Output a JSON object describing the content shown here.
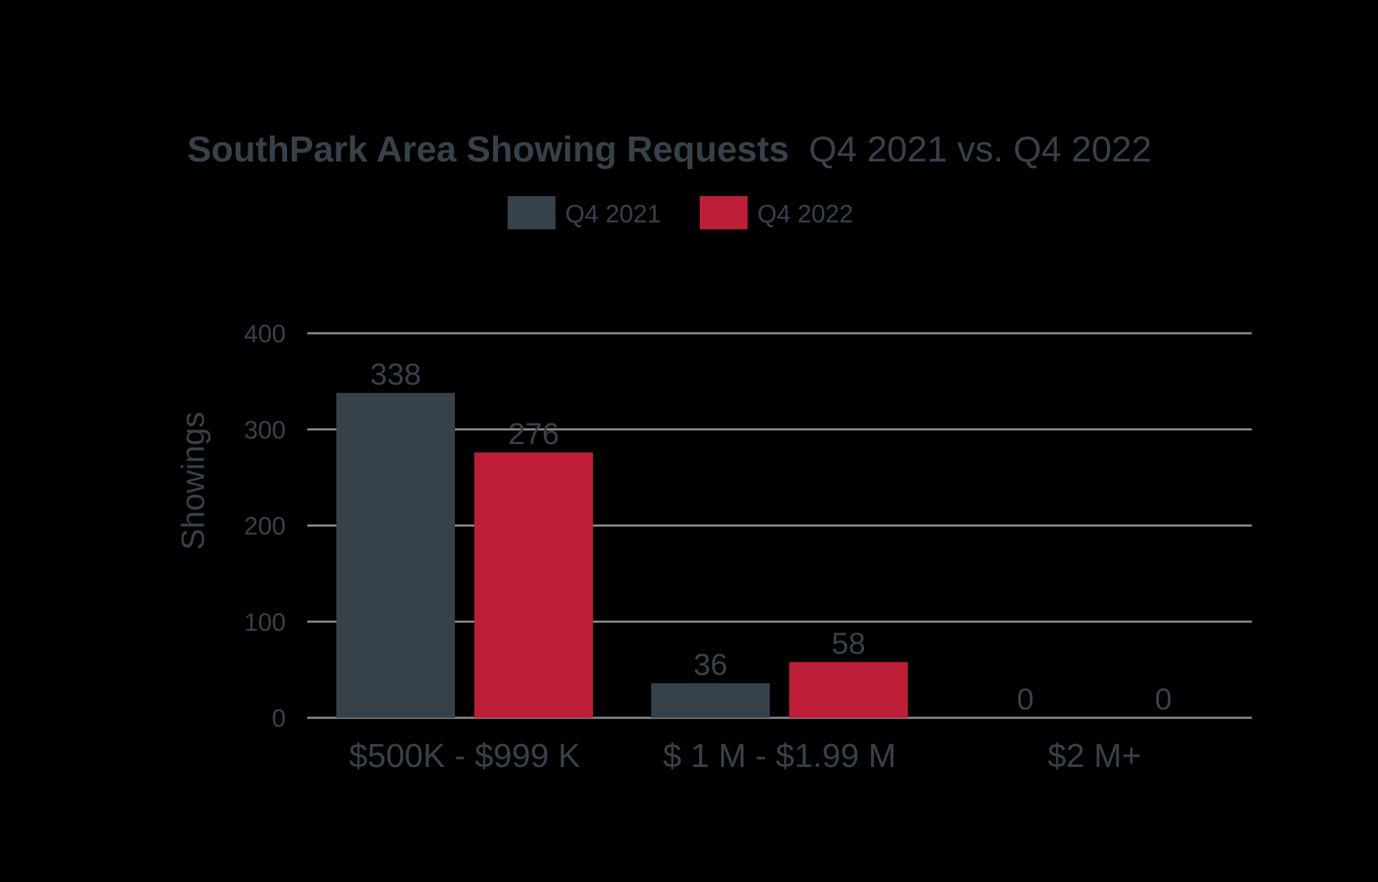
{
  "chart_data": {
    "type": "bar",
    "title_bold": "SouthPark Area Showing Requests",
    "title_rest": "Q4 2021 vs. Q4 2022",
    "xlabel": "",
    "ylabel": "Showings",
    "categories": [
      "$500K - $999 K",
      "$ 1 M - $1.99 M",
      "$2 M+"
    ],
    "series": [
      {
        "name": "Q4 2021",
        "values": [
          338,
          36,
          0
        ],
        "color": "#37414A"
      },
      {
        "name": "Q4 2022",
        "values": [
          276,
          58,
          0
        ],
        "color": "#BE1E37"
      }
    ],
    "ylim": [
      0,
      400
    ],
    "yticks": [
      0,
      100,
      200,
      300,
      400
    ],
    "grid": true,
    "legend_position": "top-center",
    "colors": {
      "background": "#000000",
      "text": "#37414A",
      "gridline": "#8C8C8C"
    }
  }
}
